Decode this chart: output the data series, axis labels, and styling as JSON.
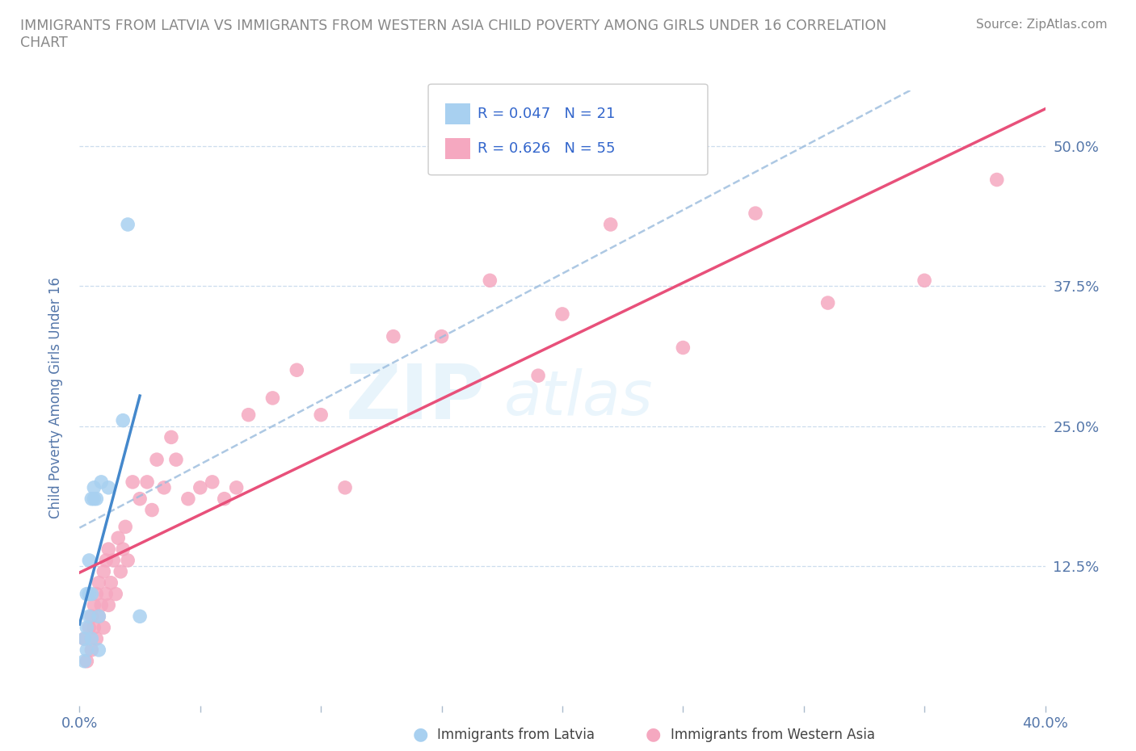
{
  "title": "IMMIGRANTS FROM LATVIA VS IMMIGRANTS FROM WESTERN ASIA CHILD POVERTY AMONG GIRLS UNDER 16 CORRELATION\nCHART",
  "source_text": "Source: ZipAtlas.com",
  "ylabel": "Child Poverty Among Girls Under 16",
  "xlim": [
    0.0,
    0.4
  ],
  "ylim": [
    0.0,
    0.55
  ],
  "xticks": [
    0.0,
    0.05,
    0.1,
    0.15,
    0.2,
    0.25,
    0.3,
    0.35,
    0.4
  ],
  "yticks": [
    0.0,
    0.125,
    0.25,
    0.375,
    0.5
  ],
  "yticklabels_right": [
    "",
    "12.5%",
    "25.0%",
    "37.5%",
    "50.0%"
  ],
  "legend_r1": "0.047",
  "legend_n1": "21",
  "legend_r2": "0.626",
  "legend_n2": "55",
  "legend_label1": "Immigrants from Latvia",
  "legend_label2": "Immigrants from Western Asia",
  "color_latvia": "#a8d0f0",
  "color_western_asia": "#f5a8c0",
  "trendline_color_latvia": "#4488cc",
  "trendline_color_western_asia": "#e8507a",
  "watermark_text": "ZIPatlas",
  "scatter_latvia_x": [
    0.002,
    0.002,
    0.003,
    0.003,
    0.003,
    0.004,
    0.004,
    0.004,
    0.005,
    0.005,
    0.005,
    0.006,
    0.006,
    0.007,
    0.008,
    0.008,
    0.009,
    0.012,
    0.018,
    0.02,
    0.025
  ],
  "scatter_latvia_y": [
    0.04,
    0.06,
    0.05,
    0.07,
    0.1,
    0.08,
    0.1,
    0.13,
    0.06,
    0.1,
    0.185,
    0.185,
    0.195,
    0.185,
    0.05,
    0.08,
    0.2,
    0.195,
    0.255,
    0.43,
    0.08
  ],
  "scatter_western_asia_x": [
    0.002,
    0.003,
    0.004,
    0.005,
    0.005,
    0.006,
    0.006,
    0.007,
    0.007,
    0.008,
    0.008,
    0.009,
    0.01,
    0.01,
    0.011,
    0.011,
    0.012,
    0.012,
    0.013,
    0.014,
    0.015,
    0.016,
    0.017,
    0.018,
    0.019,
    0.02,
    0.022,
    0.025,
    0.028,
    0.03,
    0.032,
    0.035,
    0.038,
    0.04,
    0.045,
    0.05,
    0.055,
    0.06,
    0.065,
    0.07,
    0.08,
    0.09,
    0.1,
    0.11,
    0.13,
    0.15,
    0.17,
    0.19,
    0.2,
    0.22,
    0.25,
    0.28,
    0.31,
    0.35,
    0.38
  ],
  "scatter_western_asia_y": [
    0.06,
    0.04,
    0.07,
    0.05,
    0.08,
    0.07,
    0.09,
    0.06,
    0.1,
    0.08,
    0.11,
    0.09,
    0.07,
    0.12,
    0.1,
    0.13,
    0.09,
    0.14,
    0.11,
    0.13,
    0.1,
    0.15,
    0.12,
    0.14,
    0.16,
    0.13,
    0.2,
    0.185,
    0.2,
    0.175,
    0.22,
    0.195,
    0.24,
    0.22,
    0.185,
    0.195,
    0.2,
    0.185,
    0.195,
    0.26,
    0.275,
    0.3,
    0.26,
    0.195,
    0.33,
    0.33,
    0.38,
    0.295,
    0.35,
    0.43,
    0.32,
    0.44,
    0.36,
    0.38,
    0.47
  ]
}
